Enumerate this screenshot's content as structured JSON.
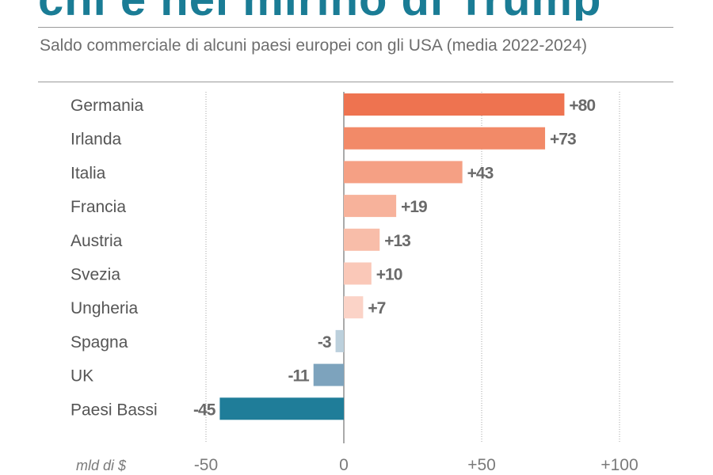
{
  "header": {
    "title_fragment": "chi è nel mirino di Trump",
    "subtitle": "Saldo commerciale di alcuni paesi europei con gli USA (media 2022-2024)"
  },
  "chart_data": {
    "type": "bar",
    "orientation": "horizontal",
    "title": "Saldo commerciale di alcuni paesi europei con gli USA (media 2022-2024)",
    "xlabel": "mld di $",
    "ylabel": "",
    "xlim": [
      -50,
      100
    ],
    "x_ticks": [
      -50,
      0,
      50,
      100
    ],
    "x_tick_labels": [
      "-50",
      "0",
      "+50",
      "+100"
    ],
    "grid": true,
    "categories": [
      "Germania",
      "Irlanda",
      "Italia",
      "Francia",
      "Austria",
      "Svezia",
      "Ungheria",
      "Spagna",
      "UK",
      "Paesi Bassi"
    ],
    "values": [
      80,
      73,
      43,
      19,
      13,
      10,
      7,
      -3,
      -11,
      -45
    ],
    "value_labels": [
      "+80",
      "+73",
      "+43",
      "+19",
      "+13",
      "+10",
      "+7",
      "-3",
      "-11",
      "-45"
    ],
    "colors": [
      "#ee7350",
      "#f28a68",
      "#f5a084",
      "#f7b29b",
      "#f8bda9",
      "#fac8b8",
      "#fbd3c7",
      "#bcd0dc",
      "#7da3bd",
      "#1f7d99"
    ]
  }
}
